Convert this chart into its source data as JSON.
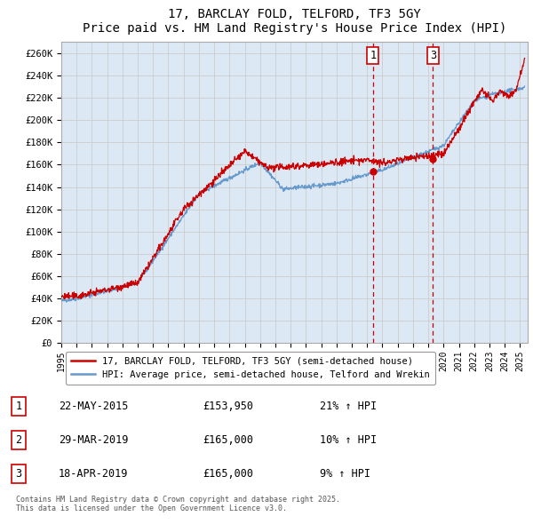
{
  "title": "17, BARCLAY FOLD, TELFORD, TF3 5GY",
  "subtitle": "Price paid vs. HM Land Registry's House Price Index (HPI)",
  "background_color": "#dce9f5",
  "plot_bg_color": "#dce9f5",
  "ylabel_ticks": [
    "£0",
    "£20K",
    "£40K",
    "£60K",
    "£80K",
    "£100K",
    "£120K",
    "£140K",
    "£160K",
    "£180K",
    "£200K",
    "£220K",
    "£240K",
    "£260K"
  ],
  "ytick_values": [
    0,
    20000,
    40000,
    60000,
    80000,
    100000,
    120000,
    140000,
    160000,
    180000,
    200000,
    220000,
    240000,
    260000
  ],
  "ylim": [
    0,
    270000
  ],
  "xlim_start": 1995.0,
  "xlim_end": 2025.5,
  "red_line_color": "#cc0000",
  "blue_line_color": "#6699cc",
  "annotation_color": "#cc0000",
  "grid_color": "#cccccc",
  "legend_label_red": "17, BARCLAY FOLD, TELFORD, TF3 5GY (semi-detached house)",
  "legend_label_blue": "HPI: Average price, semi-detached house, Telford and Wrekin",
  "marker1_x": 2015.39,
  "marker1_label": "1",
  "marker1_y": 153950,
  "marker3_x": 2019.3,
  "marker3_label": "3",
  "marker3_y": 165000,
  "table_rows": [
    {
      "num": "1",
      "date": "22-MAY-2015",
      "price": "£153,950",
      "pct": "21% ↑ HPI"
    },
    {
      "num": "2",
      "date": "29-MAR-2019",
      "price": "£165,000",
      "pct": "10% ↑ HPI"
    },
    {
      "num": "3",
      "date": "18-APR-2019",
      "price": "£165,000",
      "pct": "9% ↑ HPI"
    }
  ],
  "footer": "Contains HM Land Registry data © Crown copyright and database right 2025.\nThis data is licensed under the Open Government Licence v3.0."
}
